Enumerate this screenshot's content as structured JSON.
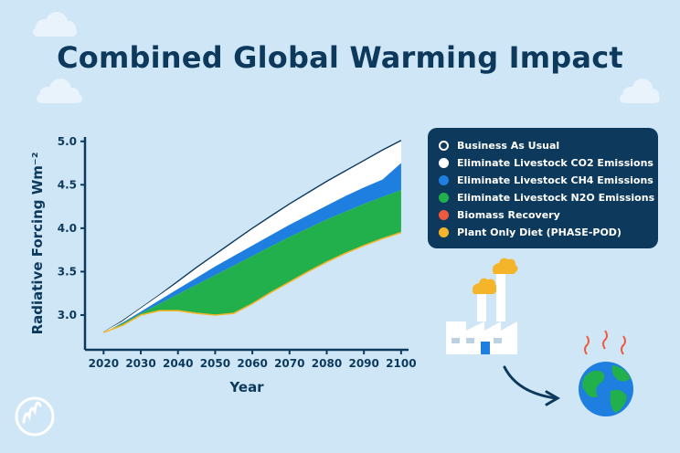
{
  "colors": {
    "background": "#cfe6f7",
    "navy": "#0d3a5c",
    "business_as_usual": "#ffffff",
    "co2": "#ffffff",
    "ch4": "#1f7fe0",
    "n2o": "#21b04b",
    "biomass": "#f05a3c",
    "plant_diet": "#f5b52a"
  },
  "icons": [
    "cloud-icon",
    "factory-icon",
    "globe-icon",
    "arrow-icon",
    "logo-icon"
  ],
  "chart_data": {
    "type": "area",
    "title": "Combined Global Warming Impact",
    "xlabel": "Year",
    "ylabel": "Radiative Forcing Wm⁻²",
    "xlim": [
      2015,
      2102
    ],
    "ylim": [
      2.6,
      5.05
    ],
    "x_ticks": [
      2020,
      2030,
      2040,
      2050,
      2060,
      2070,
      2080,
      2090,
      2100
    ],
    "y_ticks": [
      3.0,
      3.5,
      4.0,
      4.5,
      5.0
    ],
    "y_tick_labels": [
      "3.0",
      "3.5",
      "4.0",
      "4.5",
      "5.0"
    ],
    "grid": false,
    "legend_position": "right",
    "x": [
      2020,
      2025,
      2030,
      2035,
      2040,
      2045,
      2050,
      2055,
      2060,
      2065,
      2070,
      2075,
      2080,
      2085,
      2090,
      2095,
      2100
    ],
    "series": [
      {
        "name": "Business As Usual",
        "values": [
          2.8,
          2.93,
          3.08,
          3.23,
          3.39,
          3.55,
          3.7,
          3.85,
          4.0,
          4.14,
          4.28,
          4.41,
          4.54,
          4.66,
          4.78,
          4.9,
          5.01
        ]
      },
      {
        "name": "Eliminate Livestock CO2 Emissions",
        "values": [
          2.8,
          2.92,
          3.07,
          3.22,
          3.37,
          3.53,
          3.68,
          3.83,
          3.98,
          4.12,
          4.26,
          4.39,
          4.52,
          4.64,
          4.76,
          4.87,
          4.98
        ]
      },
      {
        "name": "Eliminate Livestock CH4 Emissions",
        "values": [
          2.8,
          2.91,
          3.04,
          3.17,
          3.3,
          3.43,
          3.56,
          3.68,
          3.8,
          3.92,
          4.04,
          4.15,
          4.26,
          4.37,
          4.47,
          4.56,
          4.75
        ]
      },
      {
        "name": "Eliminate Livestock N2O Emissions",
        "values": [
          2.8,
          2.9,
          3.02,
          3.13,
          3.24,
          3.35,
          3.46,
          3.57,
          3.68,
          3.79,
          3.9,
          4.0,
          4.1,
          4.19,
          4.28,
          4.36,
          4.44
        ]
      },
      {
        "name": "Biomass Recovery",
        "values": [
          2.8,
          2.88,
          3.0,
          3.05,
          3.05,
          3.02,
          3.0,
          3.02,
          3.13,
          3.26,
          3.38,
          3.5,
          3.61,
          3.71,
          3.8,
          3.88,
          3.95
        ]
      },
      {
        "name": "Plant Only Diet (PHASE-POD)",
        "values": [
          2.8,
          2.88,
          3.0,
          3.05,
          3.05,
          3.02,
          3.0,
          3.02,
          3.13,
          3.26,
          3.38,
          3.5,
          3.61,
          3.71,
          3.8,
          3.88,
          3.95
        ]
      }
    ]
  }
}
